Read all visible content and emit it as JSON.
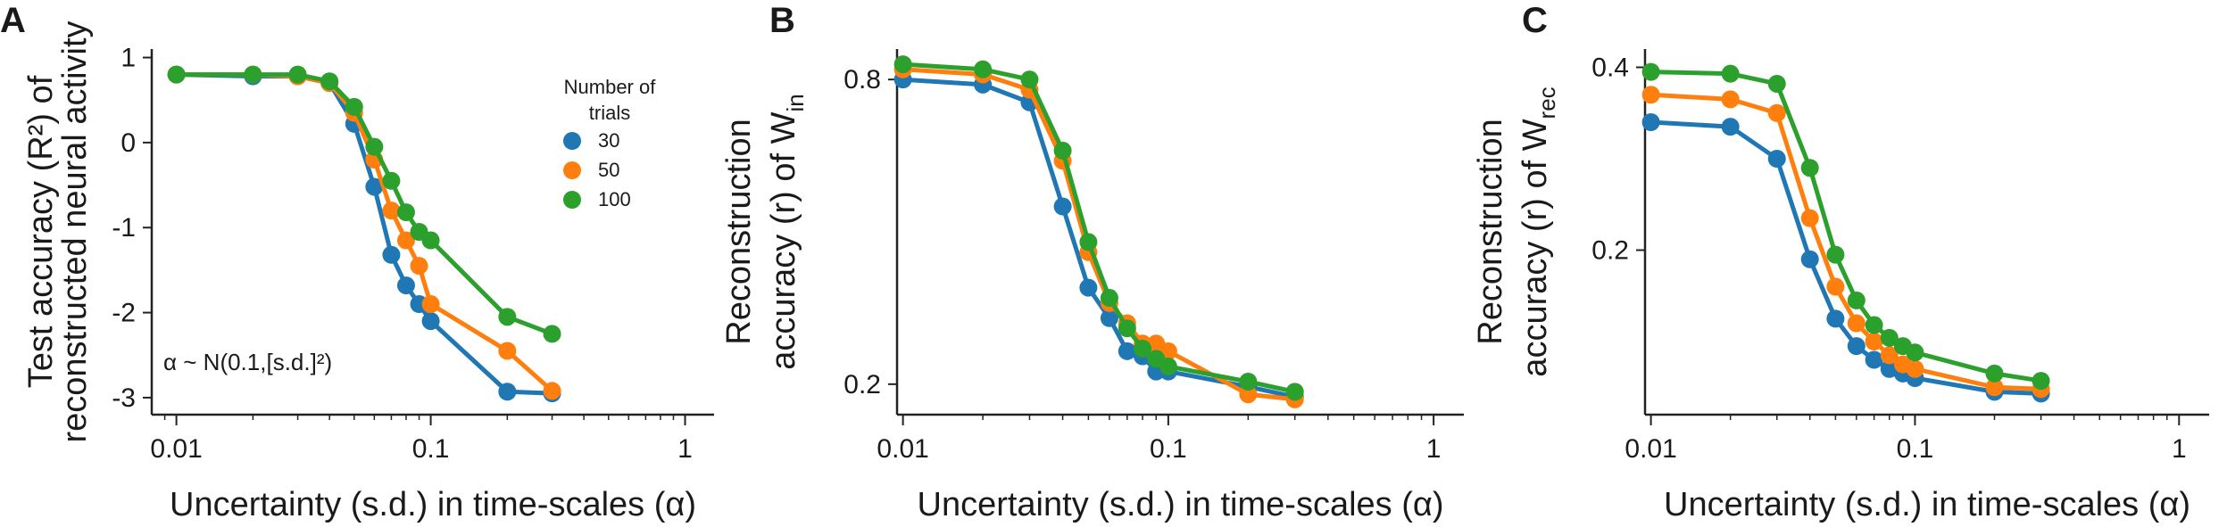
{
  "chart_data": [
    {
      "panel": "A",
      "type": "line",
      "xscale": "log",
      "xlim": [
        0.008,
        1.3
      ],
      "ylim": [
        -3.2,
        1.1
      ],
      "xticks": [
        0.01,
        0.1,
        1
      ],
      "xtick_labels": [
        "0.01",
        "0.1",
        "1"
      ],
      "yticks": [
        1,
        0,
        -1,
        -2,
        -3
      ],
      "ytick_labels": [
        "1",
        "0",
        "-1",
        "-2",
        "-3"
      ],
      "xlabel": "Uncertainty (s.d.) in time-scales (α)",
      "ylabel_lines": [
        "Test accuracy (R²) of",
        "reconstructed neural activity"
      ],
      "annotation": "α ~ N(0.1,[s.d.]²)",
      "x": [
        0.01,
        0.02,
        0.03,
        0.04,
        0.05,
        0.06,
        0.07,
        0.08,
        0.09,
        0.1,
        0.2,
        0.3
      ],
      "series": [
        {
          "name": "30",
          "color": "#1f77b4",
          "values": [
            0.8,
            0.78,
            0.78,
            0.7,
            0.22,
            -0.52,
            -1.32,
            -1.68,
            -1.9,
            -2.1,
            -2.93,
            -2.95
          ]
        },
        {
          "name": "50",
          "color": "#ff7f0e",
          "values": [
            0.8,
            0.8,
            0.78,
            0.7,
            0.35,
            -0.2,
            -0.8,
            -1.15,
            -1.45,
            -1.9,
            -2.45,
            -2.92
          ]
        },
        {
          "name": "100",
          "color": "#2ca02c",
          "values": [
            0.8,
            0.8,
            0.8,
            0.72,
            0.42,
            -0.05,
            -0.45,
            -0.82,
            -1.05,
            -1.15,
            -2.05,
            -2.25
          ]
        }
      ],
      "legend": {
        "title_lines": [
          "Number of",
          "trials"
        ],
        "placement": "top-right",
        "labels": [
          "30",
          "50",
          "100"
        ]
      }
    },
    {
      "panel": "B",
      "type": "line",
      "xscale": "log",
      "xlim": [
        0.0095,
        1.3
      ],
      "ylim": [
        0.14,
        0.86
      ],
      "xticks": [
        0.01,
        0.1,
        1
      ],
      "xtick_labels": [
        "0.01",
        "0.1",
        "1"
      ],
      "yticks": [
        0.8,
        0.2
      ],
      "ytick_labels": [
        "0.8",
        "0.2"
      ],
      "xlabel": "Uncertainty (s.d.) in time-scales (α)",
      "ylabel_lines": [
        "Reconstruction",
        "accuracy (r) of W"
      ],
      "ylabel_sub": "in",
      "x": [
        0.01,
        0.02,
        0.03,
        0.04,
        0.05,
        0.06,
        0.07,
        0.08,
        0.09,
        0.1,
        0.2,
        0.3
      ],
      "series": [
        {
          "name": "30",
          "color": "#1f77b4",
          "values": [
            0.8,
            0.79,
            0.755,
            0.55,
            0.39,
            0.33,
            0.265,
            0.255,
            0.225,
            0.225,
            0.195,
            0.175
          ]
        },
        {
          "name": "50",
          "color": "#ff7f0e",
          "values": [
            0.82,
            0.81,
            0.78,
            0.64,
            0.46,
            0.36,
            0.32,
            0.28,
            0.28,
            0.265,
            0.18,
            0.17
          ]
        },
        {
          "name": "100",
          "color": "#2ca02c",
          "values": [
            0.83,
            0.82,
            0.8,
            0.66,
            0.48,
            0.37,
            0.31,
            0.27,
            0.25,
            0.235,
            0.205,
            0.185
          ]
        }
      ]
    },
    {
      "panel": "C",
      "type": "line",
      "xscale": "log",
      "xlim": [
        0.0095,
        1.3
      ],
      "ylim": [
        0.02,
        0.42
      ],
      "xticks": [
        0.01,
        0.1,
        1
      ],
      "xtick_labels": [
        "0.01",
        "0.1",
        "1"
      ],
      "yticks": [
        0.4,
        0.2
      ],
      "ytick_labels": [
        "0.4",
        "0.2"
      ],
      "xlabel": "Uncertainty (s.d.) in time-scales (α)",
      "ylabel_lines": [
        "Reconstruction",
        "accuracy (r) of W"
      ],
      "ylabel_sub": "rec",
      "x": [
        0.01,
        0.02,
        0.03,
        0.04,
        0.05,
        0.06,
        0.07,
        0.08,
        0.09,
        0.1,
        0.2,
        0.3
      ],
      "series": [
        {
          "name": "30",
          "color": "#1f77b4",
          "values": [
            0.34,
            0.335,
            0.3,
            0.19,
            0.125,
            0.095,
            0.08,
            0.07,
            0.065,
            0.06,
            0.045,
            0.043
          ]
        },
        {
          "name": "50",
          "color": "#ff7f0e",
          "values": [
            0.37,
            0.365,
            0.35,
            0.235,
            0.16,
            0.12,
            0.1,
            0.085,
            0.075,
            0.07,
            0.05,
            0.048
          ]
        },
        {
          "name": "100",
          "color": "#2ca02c",
          "values": [
            0.395,
            0.393,
            0.382,
            0.29,
            0.195,
            0.145,
            0.118,
            0.104,
            0.095,
            0.088,
            0.065,
            0.057
          ]
        }
      ]
    }
  ]
}
